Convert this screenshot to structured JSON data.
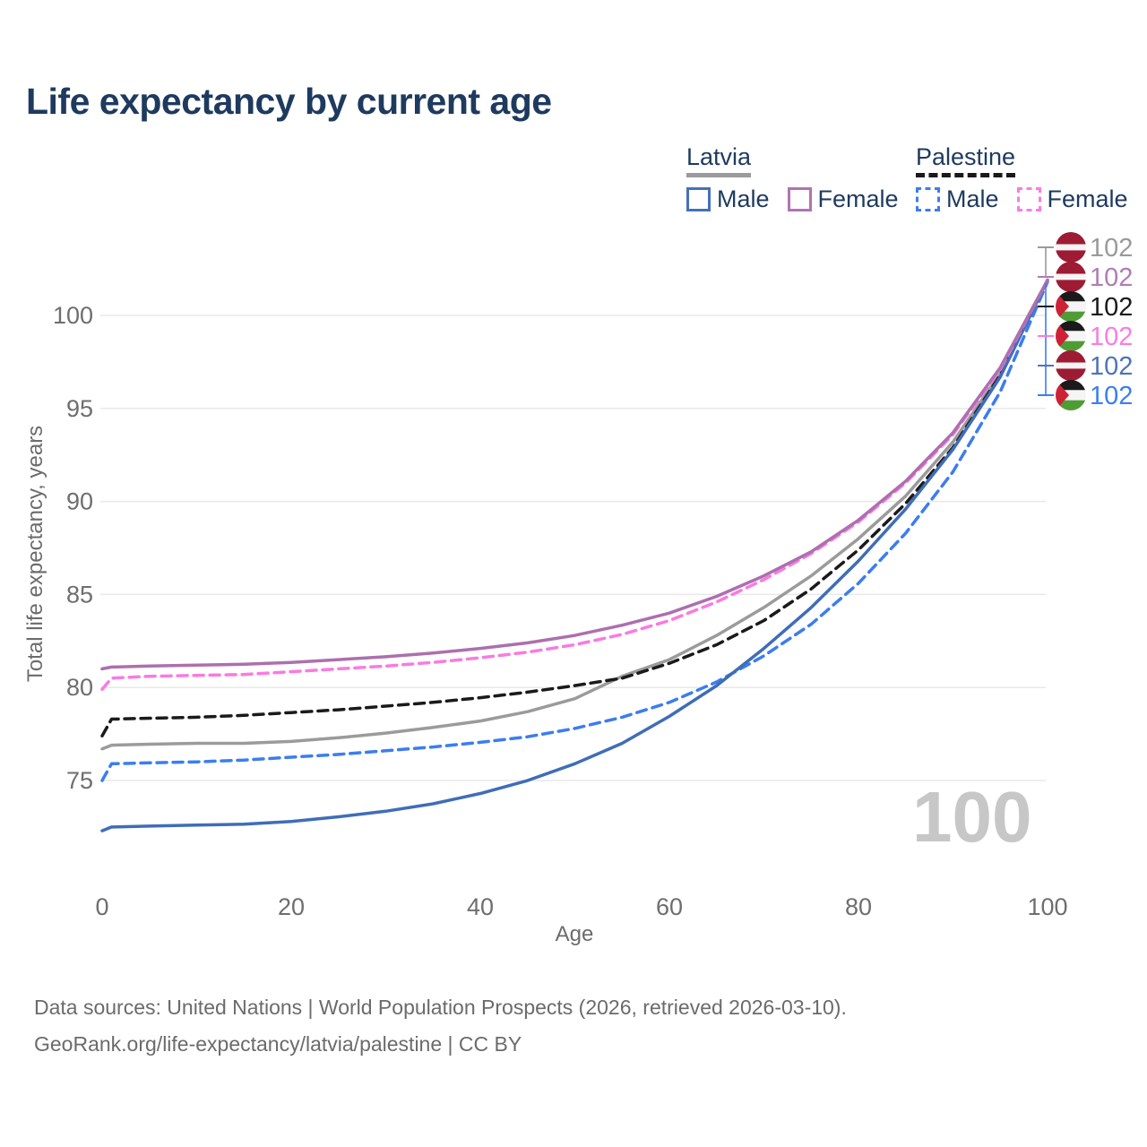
{
  "title": "Life expectancy by current age",
  "legend": {
    "position": "top-right",
    "groups": [
      {
        "label": "Latvia",
        "line_style": "solid",
        "underline_color": "#9b9b9b",
        "items": [
          {
            "label": "Male",
            "color": "#4471b8",
            "dashed": false
          },
          {
            "label": "Female",
            "color": "#b173b1",
            "dashed": false
          }
        ]
      },
      {
        "label": "Palestine",
        "line_style": "dashed",
        "underline_color": "#1a1a1a",
        "items": [
          {
            "label": "Male",
            "color": "#3b7df0",
            "dashed": true
          },
          {
            "label": "Female",
            "color": "#fb7be5",
            "dashed": true
          }
        ]
      }
    ]
  },
  "chart_data": {
    "type": "line",
    "title": "Life expectancy by current age",
    "xlabel": "Age",
    "ylabel": "Total life expectancy, years",
    "xlim": [
      0,
      100
    ],
    "ylim": [
      71.5,
      102.5
    ],
    "xticks": [
      0,
      20,
      40,
      60,
      80,
      100
    ],
    "yticks": [
      75,
      80,
      85,
      90,
      95,
      100
    ],
    "grid": "horizontal",
    "x": [
      0,
      1,
      5,
      10,
      15,
      20,
      25,
      30,
      35,
      40,
      45,
      50,
      55,
      60,
      65,
      70,
      75,
      80,
      85,
      90,
      95,
      100
    ],
    "series": [
      {
        "id": "latvia-total",
        "name": "Latvia",
        "color": "#9b9b9b",
        "dashed": false,
        "values": [
          76.7,
          76.9,
          76.95,
          77.0,
          77.0,
          77.1,
          77.3,
          77.55,
          77.85,
          78.2,
          78.7,
          79.4,
          80.6,
          81.5,
          82.8,
          84.3,
          86.0,
          88.0,
          90.3,
          93.2,
          96.9,
          101.9
        ]
      },
      {
        "id": "palestine-total",
        "name": "Palestine",
        "color": "#1a1a1a",
        "dashed": true,
        "values": [
          77.4,
          78.3,
          78.35,
          78.4,
          78.5,
          78.65,
          78.8,
          79.0,
          79.2,
          79.45,
          79.75,
          80.1,
          80.5,
          81.3,
          82.3,
          83.6,
          85.3,
          87.4,
          89.9,
          92.9,
          96.8,
          101.9
        ]
      },
      {
        "id": "palestine-male",
        "name": "Palestine Male",
        "color": "#3c7df0",
        "dashed": true,
        "values": [
          75.0,
          75.9,
          75.95,
          76.0,
          76.1,
          76.25,
          76.4,
          76.6,
          76.8,
          77.05,
          77.35,
          77.8,
          78.4,
          79.2,
          80.3,
          81.7,
          83.4,
          85.6,
          88.3,
          91.6,
          95.9,
          101.8
        ]
      },
      {
        "id": "latvia-male",
        "name": "Latvia Male",
        "color": "#3f6db8",
        "dashed": false,
        "values": [
          72.3,
          72.5,
          72.55,
          72.6,
          72.65,
          72.8,
          73.05,
          73.35,
          73.75,
          74.3,
          75.0,
          75.9,
          77.0,
          78.45,
          80.1,
          82.1,
          84.3,
          86.8,
          89.6,
          92.8,
          96.7,
          101.9
        ]
      },
      {
        "id": "palestine-female",
        "name": "Palestine Female",
        "color": "#fa7ae2",
        "dashed": true,
        "values": [
          79.9,
          80.5,
          80.6,
          80.65,
          80.7,
          80.85,
          81.0,
          81.15,
          81.35,
          81.6,
          81.9,
          82.3,
          82.85,
          83.6,
          84.6,
          85.8,
          87.2,
          88.9,
          91.0,
          93.6,
          97.1,
          101.9
        ]
      },
      {
        "id": "latvia-female",
        "name": "Latvia Female",
        "color": "#ad6fae",
        "dashed": false,
        "values": [
          81.0,
          81.1,
          81.15,
          81.2,
          81.25,
          81.35,
          81.5,
          81.65,
          81.85,
          82.1,
          82.4,
          82.8,
          83.35,
          84.0,
          84.9,
          86.0,
          87.3,
          89.0,
          91.1,
          93.7,
          97.2,
          101.9
        ]
      }
    ],
    "end_labels": [
      {
        "series": "Latvia",
        "flag": "latvia",
        "value": "102",
        "color": "#9a9a9a"
      },
      {
        "series": "Latvia Female",
        "flag": "latvia",
        "value": "102",
        "color": "#b07cb4"
      },
      {
        "series": "Palestine",
        "flag": "palestine",
        "value": "102",
        "color": "#1a1a1a"
      },
      {
        "series": "Palestine Female",
        "flag": "palestine",
        "value": "102",
        "color": "#fb7ce0"
      },
      {
        "series": "Latvia Male",
        "flag": "latvia",
        "value": "102",
        "color": "#4d74b9"
      },
      {
        "series": "Palestine Male",
        "flag": "palestine",
        "value": "102",
        "color": "#3b7df2"
      }
    ],
    "flag_colors": {
      "latvia": {
        "band": "#9e1b34",
        "middle": "#f5f5f5"
      },
      "palestine": {
        "top": "#1b1b1b",
        "middle": "#f5f5f5",
        "bottom": "#4f9c35",
        "triangle": "#cf2136"
      }
    },
    "gridline_color": "#e9e9e9",
    "tick_color": "#6e6e6e"
  },
  "watermark": "100",
  "footer": {
    "line1": "Data sources: United Nations | World Population Prospects (2026, retrieved 2026-03-10).",
    "line2": "GeoRank.org/life-expectancy/latvia/palestine | CC BY"
  }
}
